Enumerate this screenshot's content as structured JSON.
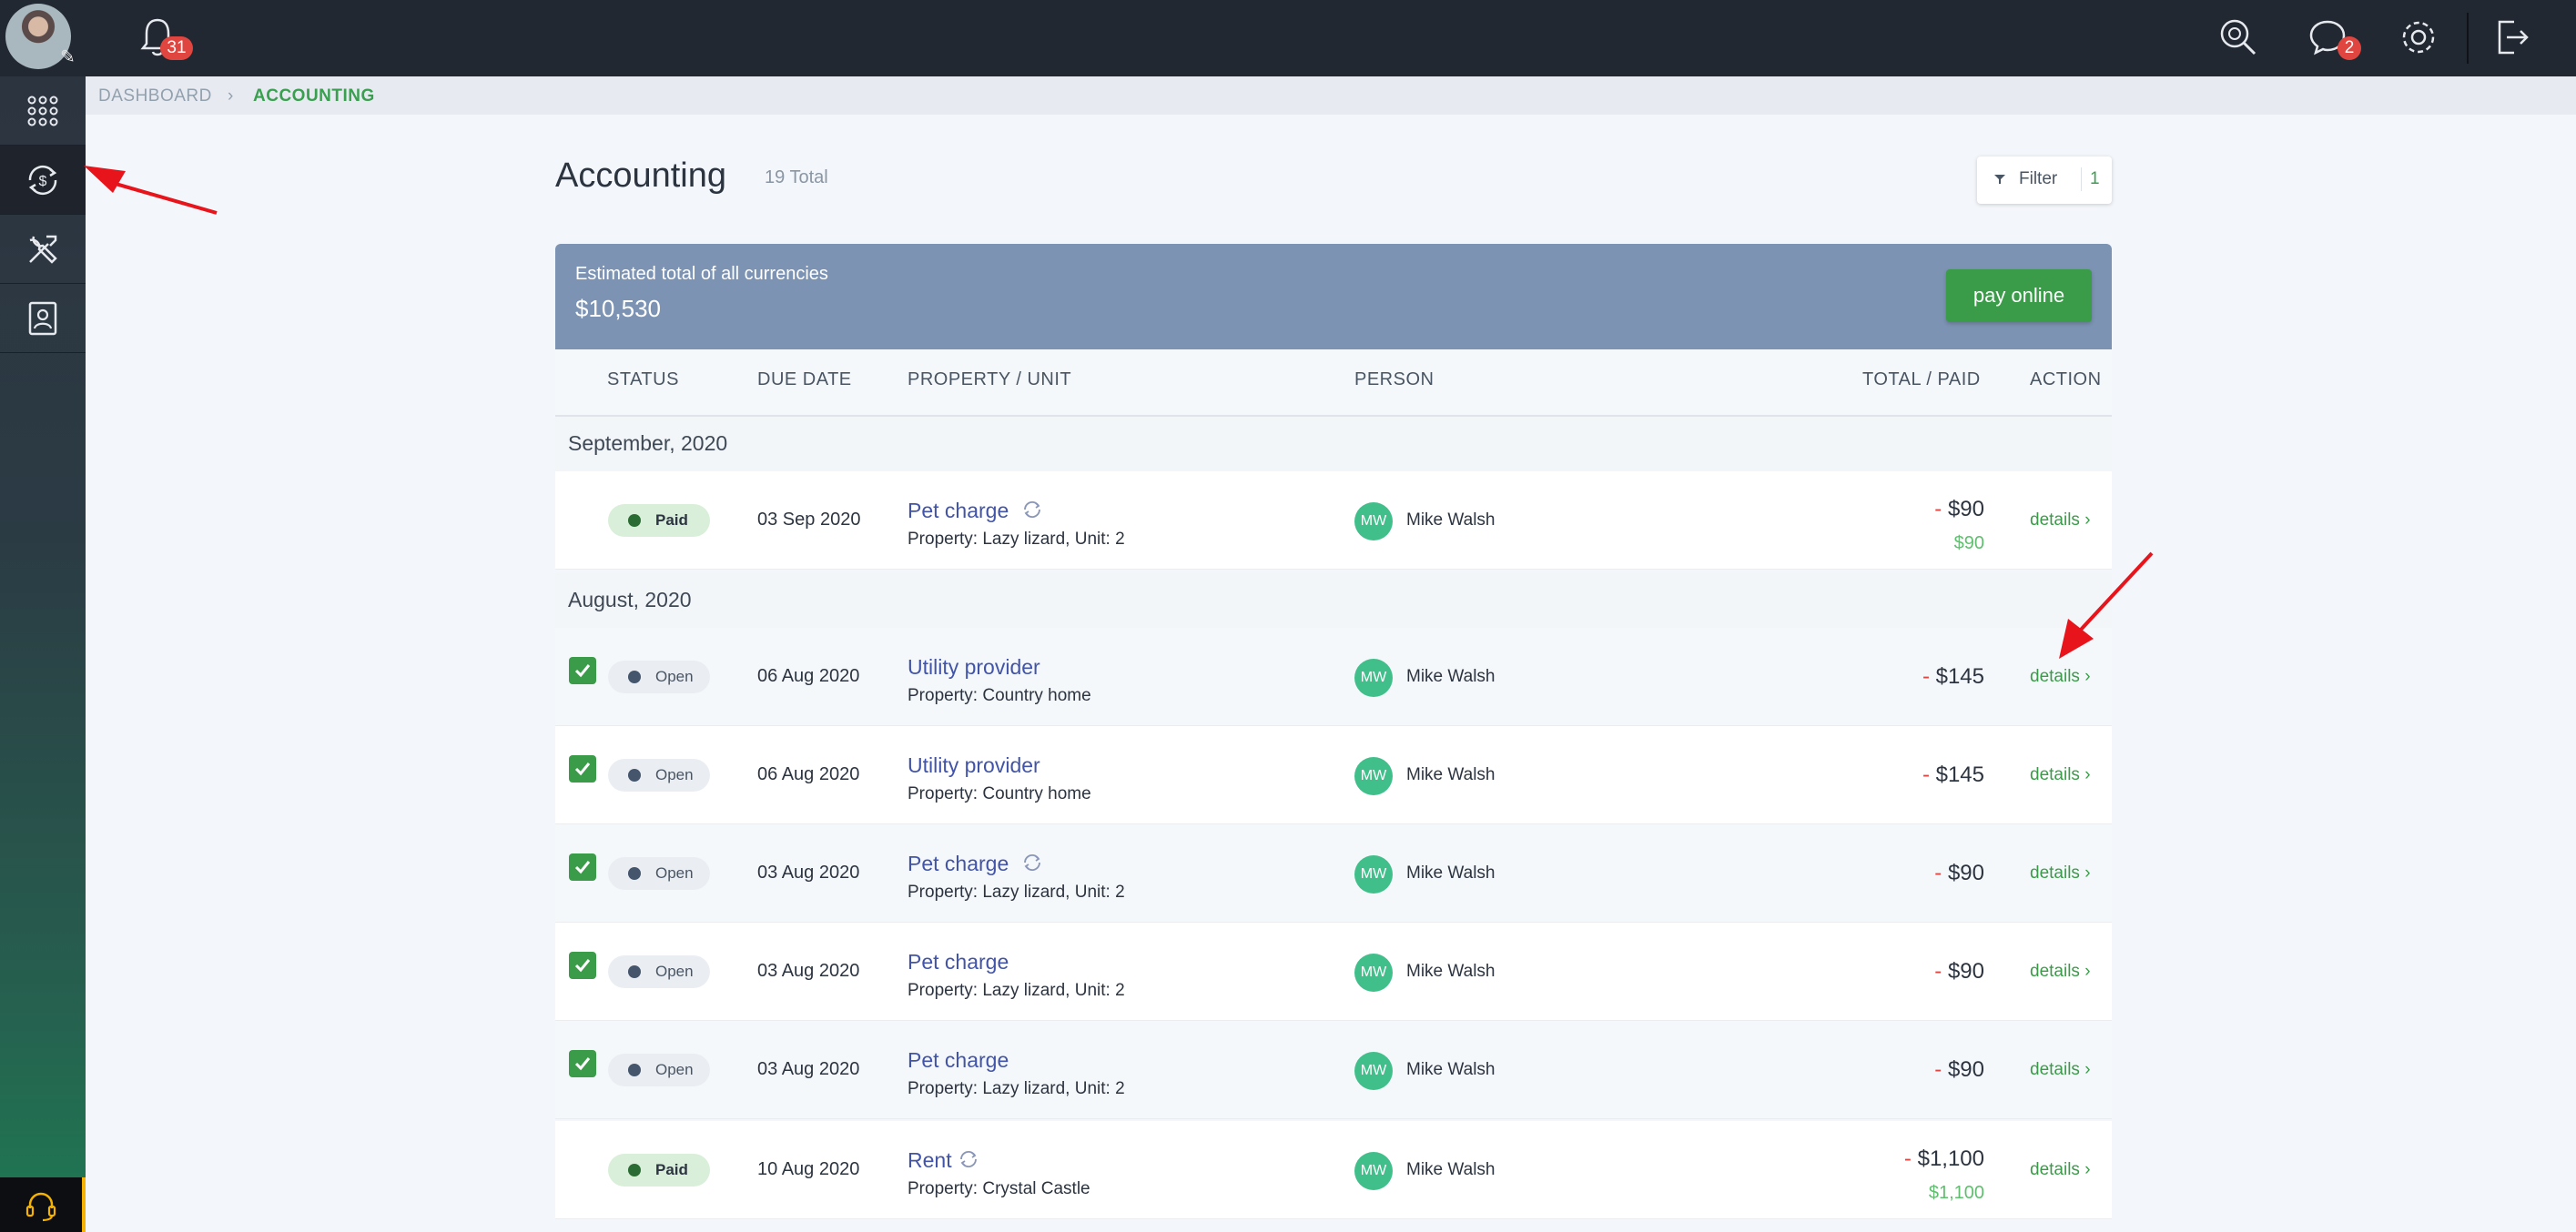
{
  "topbar": {
    "notifications_count": "31",
    "messages_count": "2"
  },
  "breadcrumb": {
    "dashboard": "DASHBOARD",
    "separator": "›",
    "current": "ACCOUNTING"
  },
  "page": {
    "title": "Accounting",
    "total": "19 Total"
  },
  "filter": {
    "label": "Filter",
    "count": "1"
  },
  "summary": {
    "label": "Estimated total of all currencies",
    "value": "$10,530",
    "pay_label": "pay online"
  },
  "columns": {
    "status": "STATUS",
    "due_date": "DUE DATE",
    "property": "PROPERTY / UNIT",
    "person": "PERSON",
    "total": "TOTAL / PAID",
    "action": "ACTION"
  },
  "groups": [
    {
      "label": "September, 2020"
    },
    {
      "label": "August, 2020"
    }
  ],
  "rows": [
    {
      "checked": false,
      "status": "Paid",
      "due": "03 Sep 2020",
      "title": "Pet charge",
      "recurring": true,
      "property": "Property: Lazy lizard, Unit: 2",
      "initials": "MW",
      "person": "Mike Walsh",
      "minus": "-",
      "total": "$90",
      "paid": "$90",
      "action": "details ›"
    },
    {
      "checked": true,
      "status": "Open",
      "due": "06 Aug 2020",
      "title": "Utility provider",
      "recurring": false,
      "property": "Property: Country home",
      "initials": "MW",
      "person": "Mike Walsh",
      "minus": "-",
      "total": "$145",
      "paid": "",
      "action": "details ›"
    },
    {
      "checked": true,
      "status": "Open",
      "due": "06 Aug 2020",
      "title": "Utility provider",
      "recurring": false,
      "property": "Property: Country home",
      "initials": "MW",
      "person": "Mike Walsh",
      "minus": "-",
      "total": "$145",
      "paid": "",
      "action": "details ›"
    },
    {
      "checked": true,
      "status": "Open",
      "due": "03 Aug 2020",
      "title": "Pet charge",
      "recurring": true,
      "property": "Property: Lazy lizard, Unit: 2",
      "initials": "MW",
      "person": "Mike Walsh",
      "minus": "-",
      "total": "$90",
      "paid": "",
      "action": "details ›"
    },
    {
      "checked": true,
      "status": "Open",
      "due": "03 Aug 2020",
      "title": "Pet charge",
      "recurring": false,
      "property": "Property: Lazy lizard, Unit: 2",
      "initials": "MW",
      "person": "Mike Walsh",
      "minus": "-",
      "total": "$90",
      "paid": "",
      "action": "details ›"
    },
    {
      "checked": true,
      "status": "Open",
      "due": "03 Aug 2020",
      "title": "Pet charge",
      "recurring": false,
      "property": "Property: Lazy lizard, Unit: 2",
      "initials": "MW",
      "person": "Mike Walsh",
      "minus": "-",
      "total": "$90",
      "paid": "",
      "action": "details ›"
    },
    {
      "checked": false,
      "status": "Paid",
      "due": "10 Aug 2020",
      "title": "Rent",
      "recurring": true,
      "property": "Property: Crystal Castle",
      "initials": "MW",
      "person": "Mike Walsh",
      "minus": "-",
      "total": "$1,100",
      "paid": "$1,100",
      "action": "details ›"
    }
  ],
  "colors": {
    "accent_green": "#3a9c48",
    "summary_bg": "#7c93b3",
    "link_blue": "#4254a8",
    "negative_red": "#e0453f",
    "annotation_arrow": "#e8141c"
  },
  "icons": {
    "topbar": [
      "bell-icon",
      "search-icon",
      "chat-icon",
      "gear-icon",
      "logout-icon"
    ],
    "sidebar": [
      "apps-grid-icon",
      "accounting-icon",
      "tools-icon",
      "contacts-icon",
      "headset-icon"
    ]
  }
}
